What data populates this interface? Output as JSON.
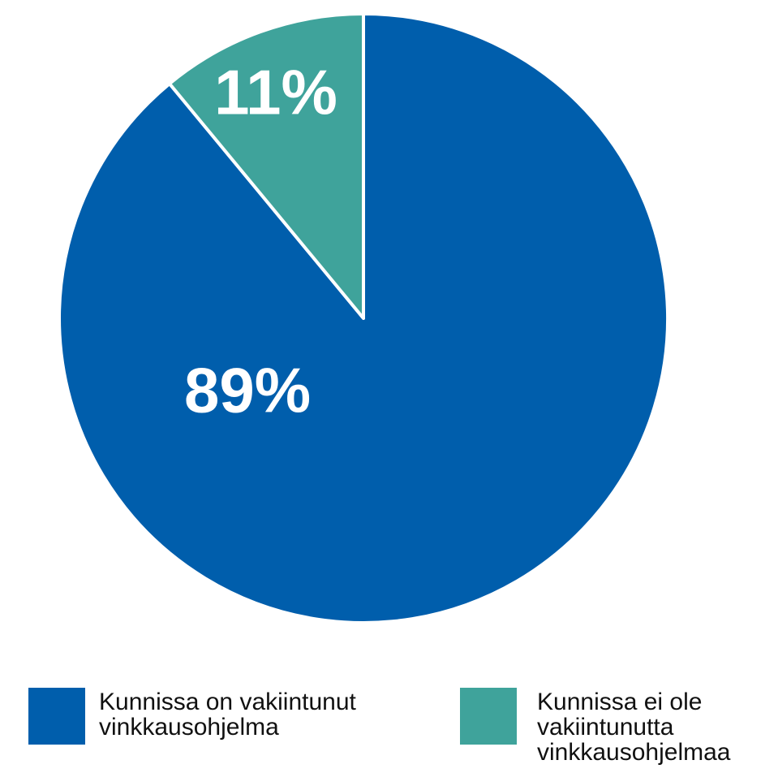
{
  "chart_data": {
    "type": "pie",
    "categories": [
      "Kunnissa on vakiintunut vinkkausohjelma",
      "Kunnissa ei ole vakiintunutta vinkkausohjelmaa"
    ],
    "values": [
      89,
      11
    ],
    "value_labels": [
      "89%",
      "11%"
    ],
    "colors": [
      "#005eac",
      "#3fa39b"
    ],
    "legend": "bottom"
  }
}
